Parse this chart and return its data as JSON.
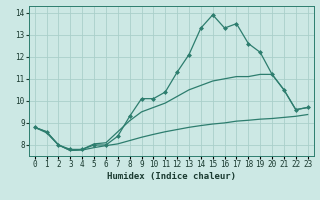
{
  "xlabel": "Humidex (Indice chaleur)",
  "x_hours": [
    0,
    1,
    2,
    3,
    4,
    5,
    6,
    7,
    8,
    9,
    10,
    11,
    12,
    13,
    14,
    15,
    16,
    17,
    18,
    19,
    20,
    21,
    22,
    23
  ],
  "main_line": [
    8.8,
    8.6,
    8.0,
    7.8,
    7.8,
    8.0,
    8.0,
    8.4,
    9.3,
    10.1,
    10.1,
    10.4,
    11.3,
    12.1,
    13.3,
    13.9,
    13.3,
    13.5,
    12.6,
    12.2,
    11.2,
    10.5,
    9.6,
    9.7
  ],
  "line2": [
    8.8,
    8.6,
    8.0,
    7.75,
    7.8,
    8.05,
    8.1,
    8.6,
    9.1,
    9.5,
    9.7,
    9.9,
    10.2,
    10.5,
    10.7,
    10.9,
    11.0,
    11.1,
    11.1,
    11.2,
    11.2,
    10.5,
    9.6,
    9.7
  ],
  "line3": [
    8.8,
    8.55,
    8.0,
    7.75,
    7.77,
    7.88,
    7.97,
    8.05,
    8.2,
    8.35,
    8.48,
    8.6,
    8.7,
    8.8,
    8.88,
    8.95,
    9.0,
    9.08,
    9.12,
    9.17,
    9.2,
    9.25,
    9.3,
    9.38
  ],
  "ylim": [
    7.5,
    14.3
  ],
  "yticks": [
    8,
    9,
    10,
    11,
    12,
    13,
    14
  ],
  "xlim": [
    -0.5,
    23.5
  ],
  "bg_color": "#cce8e4",
  "line_color": "#2d7d6e",
  "grid_color": "#aacfca",
  "xlabel_color": "#1a3a30",
  "tick_fontsize": 5.5,
  "xlabel_fontsize": 6.5
}
